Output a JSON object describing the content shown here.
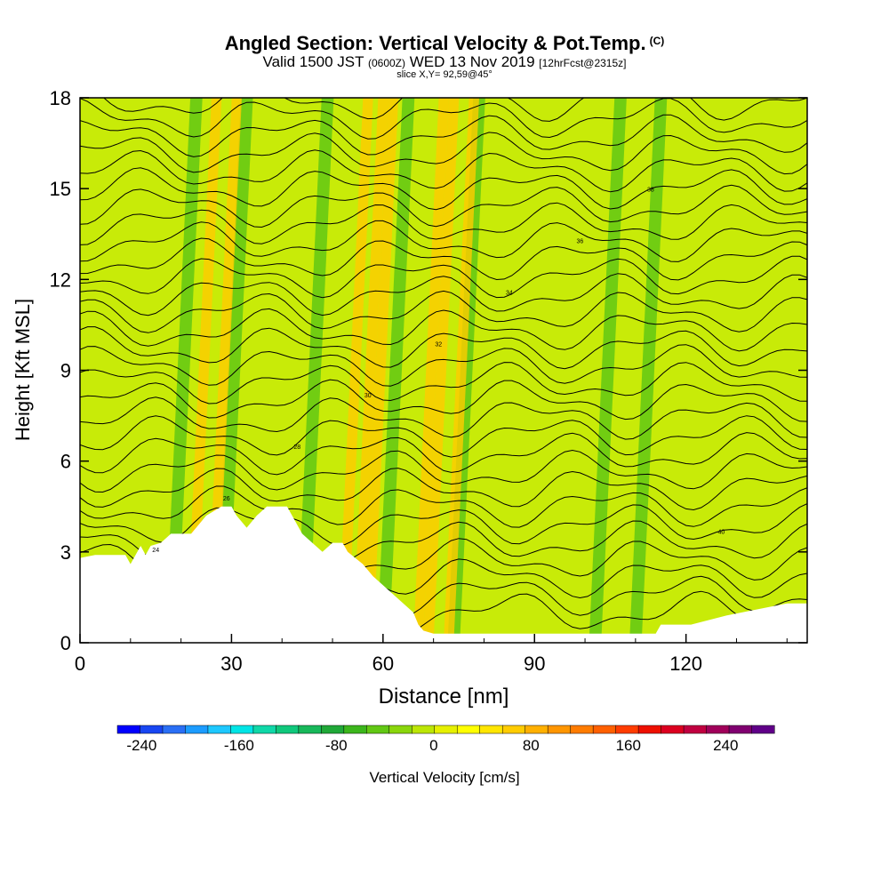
{
  "title": {
    "main": "Angled Section: Vertical Velocity & Pot.Temp.",
    "units_tag": "(C)",
    "valid_prefix": "Valid 1500 JST",
    "valid_utc": "(0600Z)",
    "valid_date": "WED 13 Nov 2019",
    "forecast": "[12hrFcst@2315z]",
    "slice": "slice X,Y= 92,59@45°"
  },
  "chart_data": {
    "type": "heatmap",
    "title": "Angled Section: Vertical Velocity & Pot.Temp.",
    "xlabel": "Distance [nm]",
    "ylabel": "Height [Kft MSL]",
    "xlim": [
      0,
      144
    ],
    "ylim": [
      0,
      18
    ],
    "x_ticks": [
      "0",
      "30",
      "60",
      "90",
      "120"
    ],
    "y_ticks": [
      "0",
      "3",
      "6",
      "9",
      "12",
      "15",
      "18"
    ],
    "colorbar": {
      "label": "Vertical Velocity [cm/s]",
      "ticks": [
        "-240",
        "-160",
        "-80",
        "0",
        "80",
        "160",
        "240"
      ],
      "range": [
        -260,
        280
      ],
      "step": 20,
      "colors": [
        "#0000ff",
        "#1846f2",
        "#2a6ff5",
        "#1c9cff",
        "#1ec8ff",
        "#00e5e6",
        "#10d8a8",
        "#10c87c",
        "#18b85a",
        "#20a838",
        "#3cb61c",
        "#62c814",
        "#8ad60c",
        "#bce605",
        "#e6f000",
        "#ffff00",
        "#ffe600",
        "#ffcc00",
        "#ffb000",
        "#ff9600",
        "#ff7c00",
        "#ff6000",
        "#ff3c00",
        "#ee1000",
        "#dc0020",
        "#c00040",
        "#a0005a",
        "#800070",
        "#600088"
      ]
    },
    "updraft_bands_x_nm": [
      22,
      26,
      52,
      55,
      57,
      67,
      69,
      73
    ],
    "downdraft_bands_x_nm": [
      18,
      28,
      44,
      60,
      74,
      102,
      110
    ],
    "theta_contour_labels": [
      "24",
      "26",
      "28",
      "30",
      "32",
      "34",
      "36",
      "38",
      "40"
    ],
    "theta_contour_count": 30,
    "terrain_kft": [
      [
        0,
        2.8
      ],
      [
        3,
        2.9
      ],
      [
        9,
        2.9
      ],
      [
        10,
        2.6
      ],
      [
        11,
        2.9
      ],
      [
        12,
        3.2
      ],
      [
        13,
        2.9
      ],
      [
        14,
        3.2
      ],
      [
        16,
        3.3
      ],
      [
        18,
        3.6
      ],
      [
        19,
        3.6
      ],
      [
        22,
        3.6
      ],
      [
        25,
        4.2
      ],
      [
        28,
        4.5
      ],
      [
        30,
        4.5
      ],
      [
        31,
        4.2
      ],
      [
        33,
        3.8
      ],
      [
        35,
        4.2
      ],
      [
        37,
        4.5
      ],
      [
        41,
        4.5
      ],
      [
        42,
        4.2
      ],
      [
        44,
        3.6
      ],
      [
        46,
        3.3
      ],
      [
        48,
        3.0
      ],
      [
        50,
        3.3
      ],
      [
        52,
        3.3
      ],
      [
        53,
        3.0
      ],
      [
        56,
        2.6
      ],
      [
        58,
        2.2
      ],
      [
        60,
        1.9
      ],
      [
        62,
        1.6
      ],
      [
        64,
        1.3
      ],
      [
        66,
        1.0
      ],
      [
        67,
        0.6
      ],
      [
        68,
        0.4
      ],
      [
        70,
        0.3
      ],
      [
        114,
        0.3
      ],
      [
        115,
        0.6
      ],
      [
        121,
        0.6
      ],
      [
        128,
        0.9
      ],
      [
        140,
        1.3
      ],
      [
        144,
        1.3
      ]
    ]
  }
}
